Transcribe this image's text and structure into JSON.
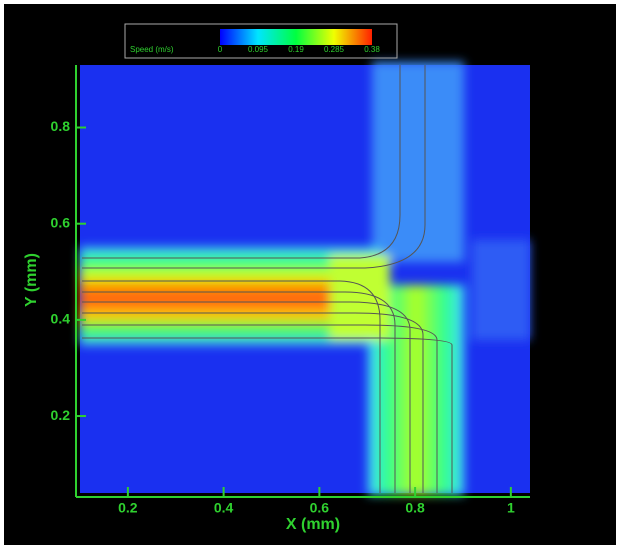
{
  "chart_data": {
    "type": "contour",
    "xlabel": "X (mm)",
    "ylabel": "Y (mm)",
    "xlim": [
      0.1,
      1.04
    ],
    "ylim": [
      0.04,
      0.93
    ],
    "xticks": [
      0.2,
      0.4,
      0.6,
      0.8,
      1
    ],
    "yticks": [
      0.2,
      0.4,
      0.6,
      0.8
    ],
    "axis_color": "#2fd12f",
    "colorbar": {
      "label": "Speed (m/s)",
      "lim": [
        0,
        0.38
      ],
      "ticks": [
        0,
        0.095,
        0.19,
        0.285,
        0.38
      ],
      "colormap": [
        "#0000ff",
        "#00e5ff",
        "#00ff40",
        "#f0ff00",
        "#ff2000"
      ]
    }
  }
}
